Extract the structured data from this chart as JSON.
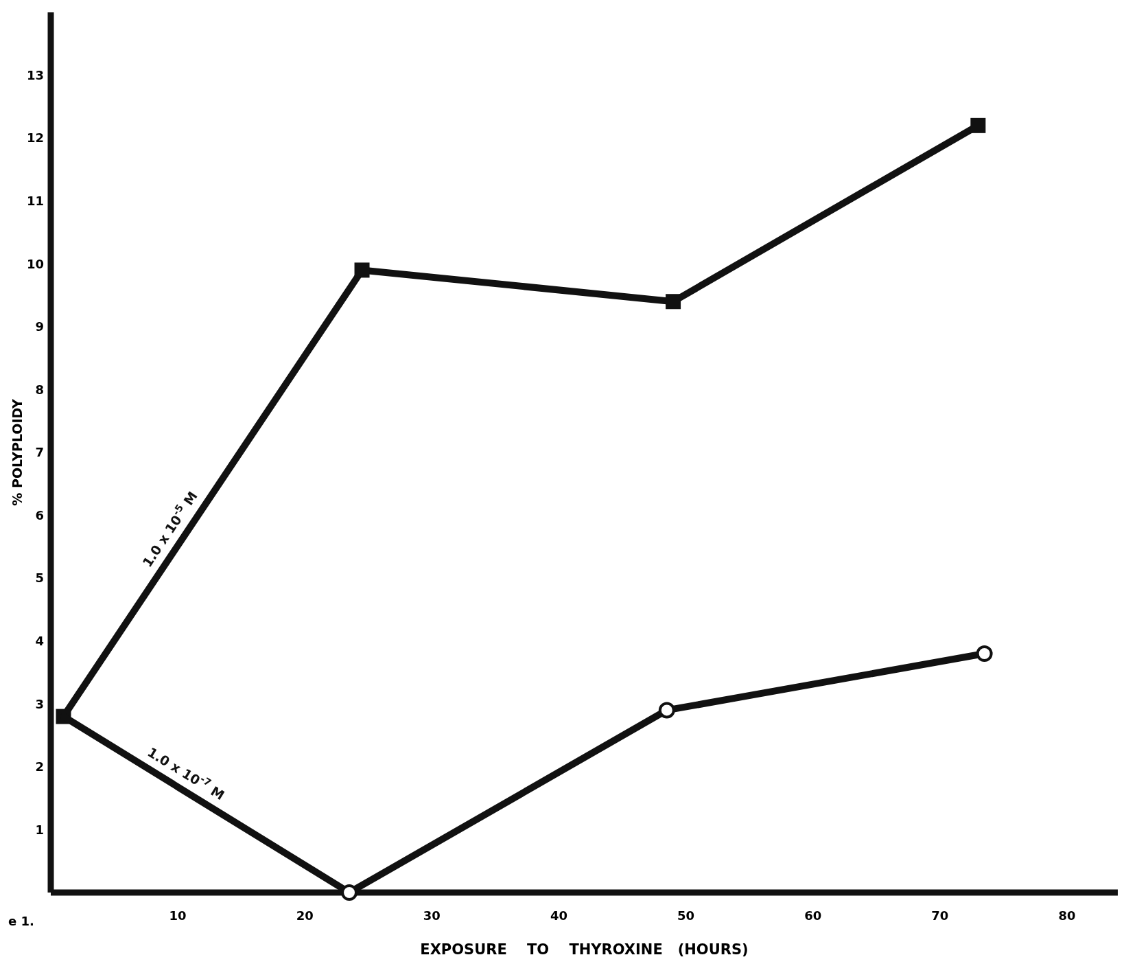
{
  "chart_data": {
    "type": "line",
    "xlabel": "EXPOSURE    TO    THYROXINE   (HOURS)",
    "ylabel": "% POLYPLOIDY",
    "xlim": [
      0,
      84
    ],
    "xticks": [
      10,
      20,
      30,
      40,
      50,
      60,
      70,
      80
    ],
    "ylim": [
      0,
      14
    ],
    "yticks": [
      1,
      2,
      3,
      4,
      5,
      6,
      7,
      8,
      9,
      10,
      11,
      12,
      13
    ],
    "grid": false,
    "line_style": "solid",
    "color": "#111111",
    "series": [
      {
        "name": "1.0 x 10$^{-5}$ M",
        "marker": "square",
        "x": [
          1,
          24.5,
          49,
          73
        ],
        "values": [
          2.8,
          9.9,
          9.4,
          12.2
        ]
      },
      {
        "name": "1.0 x 10$^{-7}$ M",
        "marker": "circle",
        "x": [
          1,
          23.5,
          48.5,
          73.5
        ],
        "values": [
          2.8,
          0,
          2.9,
          3.8
        ]
      }
    ],
    "annotations": [
      "e 1."
    ]
  }
}
